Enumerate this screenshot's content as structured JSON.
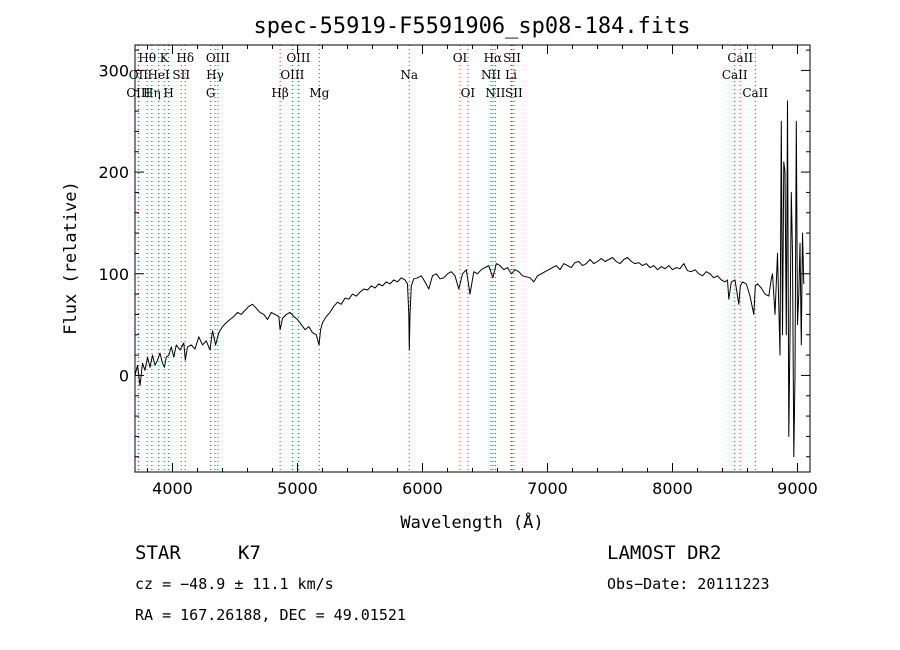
{
  "chart_data": {
    "type": "line",
    "title": "spec-55919-F5591906_sp08-184.fits",
    "xlabel": "Wavelength (Å)",
    "ylabel": "Flux (relative)",
    "xlim": [
      3700,
      9100
    ],
    "ylim": [
      -95,
      325
    ],
    "x_ticks": [
      4000,
      5000,
      6000,
      7000,
      8000,
      9000
    ],
    "y_ticks": [
      0,
      100,
      200,
      300
    ],
    "grid": false,
    "line_color": "#000000",
    "marker_color": "#e01818",
    "reference_lines": [
      {
        "label": "Hθ",
        "x": 3798,
        "row": 1
      },
      {
        "label": "OII",
        "x": 3727,
        "row": 2
      },
      {
        "label": "OIII",
        "x": 3727,
        "row": 3
      },
      {
        "label": "Hη",
        "x": 3835,
        "row": 3
      },
      {
        "label": "K",
        "x": 3934,
        "row": 1
      },
      {
        "label": "HeI",
        "x": 3889,
        "row": 2
      },
      {
        "label": "SII",
        "x": 4070,
        "row": 2
      },
      {
        "label": "H",
        "x": 3969,
        "row": 3
      },
      {
        "label": "Hδ",
        "x": 4102,
        "row": 1
      },
      {
        "label": "OIII",
        "x": 4363,
        "row": 1
      },
      {
        "label": "Hγ",
        "x": 4340,
        "row": 2
      },
      {
        "label": "G",
        "x": 4305,
        "row": 3
      },
      {
        "label": "OIII",
        "x": 5007,
        "row": 1
      },
      {
        "label": "OIII",
        "x": 4959,
        "row": 2
      },
      {
        "label": "Hβ",
        "x": 4861,
        "row": 3
      },
      {
        "label": "Mg",
        "x": 5175,
        "row": 3
      },
      {
        "label": "Na",
        "x": 5894,
        "row": 2
      },
      {
        "label": "OI",
        "x": 6300,
        "row": 1
      },
      {
        "label": "OI",
        "x": 6363,
        "row": 3
      },
      {
        "label": "Hα",
        "x": 6563,
        "row": 1
      },
      {
        "label": "SII",
        "x": 6716,
        "row": 1
      },
      {
        "label": "NII",
        "x": 6548,
        "row": 2
      },
      {
        "label": "Li",
        "x": 6708,
        "row": 2
      },
      {
        "label": "NII",
        "x": 6583,
        "row": 3
      },
      {
        "label": "SII",
        "x": 6731,
        "row": 3
      },
      {
        "label": "CaII",
        "x": 8542,
        "row": 1
      },
      {
        "label": "CaII",
        "x": 8498,
        "row": 2
      },
      {
        "label": "CaII",
        "x": 8662,
        "row": 3
      }
    ],
    "series": [
      {
        "x": [
          3700,
          3720,
          3740,
          3760,
          3780,
          3800,
          3820,
          3840,
          3860,
          3880,
          3900,
          3920,
          3935,
          3950,
          3970,
          3990,
          4010,
          4030,
          4060,
          4090,
          4102,
          4120,
          4150,
          4180,
          4210,
          4240,
          4270,
          4300,
          4320,
          4345,
          4370,
          4400,
          4430,
          4460,
          4490,
          4520,
          4550,
          4580,
          4610,
          4640,
          4670,
          4700,
          4730,
          4760,
          4790,
          4820,
          4850,
          4861,
          4880,
          4910,
          4940,
          4970,
          5000,
          5030,
          5060,
          5090,
          5120,
          5150,
          5172,
          5185,
          5200,
          5230,
          5260,
          5290,
          5320,
          5350,
          5380,
          5410,
          5440,
          5470,
          5500,
          5530,
          5560,
          5590,
          5620,
          5650,
          5680,
          5710,
          5740,
          5770,
          5800,
          5830,
          5860,
          5880,
          5890,
          5894,
          5900,
          5910,
          5930,
          5960,
          5990,
          6020,
          6050,
          6080,
          6110,
          6140,
          6170,
          6200,
          6230,
          6260,
          6290,
          6320,
          6350,
          6380,
          6410,
          6440,
          6470,
          6500,
          6530,
          6563,
          6590,
          6620,
          6650,
          6680,
          6710,
          6740,
          6770,
          6800,
          6830,
          6860,
          6890,
          6920,
          6950,
          6980,
          7010,
          7040,
          7070,
          7100,
          7130,
          7160,
          7190,
          7220,
          7250,
          7280,
          7310,
          7340,
          7370,
          7400,
          7430,
          7460,
          7490,
          7520,
          7550,
          7580,
          7610,
          7640,
          7670,
          7700,
          7730,
          7760,
          7790,
          7820,
          7850,
          7880,
          7910,
          7940,
          7970,
          8000,
          8030,
          8060,
          8090,
          8120,
          8150,
          8180,
          8210,
          8240,
          8270,
          8300,
          8330,
          8360,
          8390,
          8420,
          8440,
          8450,
          8470,
          8500,
          8530,
          8542,
          8560,
          8590,
          8620,
          8650,
          8662,
          8680,
          8710,
          8740,
          8770,
          8790,
          8800,
          8820,
          8840,
          8860,
          8870,
          8880,
          8890,
          8900,
          8910,
          8920,
          8930,
          8940,
          8950,
          8960,
          8970,
          8980,
          8990,
          9000,
          9010,
          9020,
          9030,
          9040,
          9050
        ],
        "y": [
          0,
          10,
          -10,
          12,
          5,
          18,
          8,
          20,
          10,
          15,
          22,
          12,
          8,
          18,
          20,
          28,
          18,
          30,
          25,
          32,
          15,
          28,
          30,
          26,
          38,
          30,
          34,
          25,
          44,
          30,
          42,
          48,
          52,
          55,
          58,
          62,
          60,
          64,
          68,
          70,
          66,
          62,
          60,
          55,
          62,
          60,
          58,
          45,
          56,
          60,
          62,
          58,
          55,
          50,
          45,
          48,
          42,
          40,
          30,
          45,
          52,
          58,
          62,
          68,
          72,
          70,
          76,
          75,
          80,
          78,
          82,
          85,
          84,
          88,
          86,
          90,
          88,
          92,
          90,
          94,
          92,
          96,
          94,
          90,
          60,
          25,
          60,
          88,
          95,
          96,
          98,
          92,
          85,
          98,
          100,
          95,
          96,
          100,
          102,
          98,
          85,
          100,
          104,
          80,
          102,
          100,
          104,
          106,
          108,
          96,
          110,
          108,
          104,
          106,
          100,
          104,
          102,
          98,
          97,
          96,
          92,
          98,
          100,
          102,
          104,
          106,
          108,
          104,
          110,
          108,
          106,
          111,
          112,
          108,
          110,
          114,
          110,
          112,
          115,
          112,
          114,
          116,
          112,
          110,
          114,
          116,
          112,
          110,
          111,
          108,
          110,
          106,
          108,
          104,
          107,
          105,
          108,
          104,
          106,
          105,
          110,
          103,
          102,
          104,
          100,
          98,
          102,
          100,
          96,
          98,
          94,
          92,
          94,
          75,
          92,
          94,
          70,
          88,
          92,
          90,
          78,
          60,
          88,
          90,
          86,
          80,
          78,
          95,
          100,
          60,
          120,
          20,
          250,
          40,
          210,
          200,
          40,
          270,
          -60,
          40,
          180,
          120,
          -80,
          0,
          250,
          50,
          80,
          130,
          30,
          140,
          90
        ]
      }
    ]
  },
  "info": {
    "object_class": "STAR",
    "subclass": "K7",
    "cz": "cz = −48.9 ± 11.1 km/s",
    "coords": "RA = 167.26188, DEC =  49.01521",
    "survey": "LAMOST DR2",
    "obs_date": "Obs−Date: 20111223"
  }
}
